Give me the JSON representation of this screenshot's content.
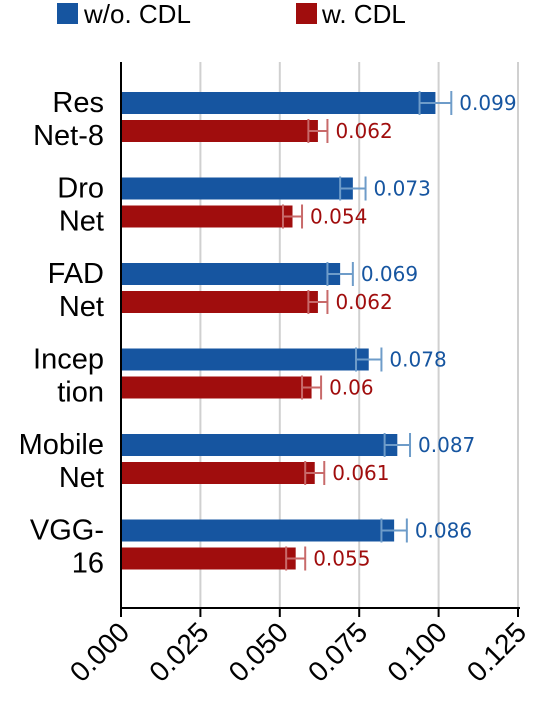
{
  "chart_data": {
    "type": "bar",
    "orientation": "horizontal",
    "categories": [
      "Res\nNet-8",
      "Dro\nNet",
      "FAD\nNet",
      "Incep\ntion",
      "Mobile\nNet",
      "VGG-\n16"
    ],
    "series": [
      {
        "name": "w/o. CDL",
        "color": "#1655a0",
        "values": [
          0.099,
          0.073,
          0.069,
          0.078,
          0.087,
          0.086
        ],
        "labels": [
          "0.099",
          "0.073",
          "0.069",
          "0.078",
          "0.087",
          "0.086"
        ],
        "errors": [
          0.005,
          0.004,
          0.004,
          0.004,
          0.004,
          0.004
        ]
      },
      {
        "name": "w. CDL",
        "color": "#a00d0d",
        "values": [
          0.062,
          0.054,
          0.062,
          0.06,
          0.061,
          0.055
        ],
        "labels": [
          "0.062",
          "0.054",
          "0.062",
          "0.06",
          "0.061",
          "0.055"
        ],
        "errors": [
          0.003,
          0.003,
          0.003,
          0.003,
          0.003,
          0.003
        ]
      }
    ],
    "xlim": [
      0,
      0.125
    ],
    "xticks": [
      "0.000",
      "0.025",
      "0.050",
      "0.075",
      "0.100",
      "0.125"
    ],
    "xtick_values": [
      0,
      0.025,
      0.05,
      0.075,
      0.1,
      0.125
    ],
    "grid": true,
    "legend_position": "top",
    "title": "",
    "xlabel": "",
    "ylabel": ""
  }
}
